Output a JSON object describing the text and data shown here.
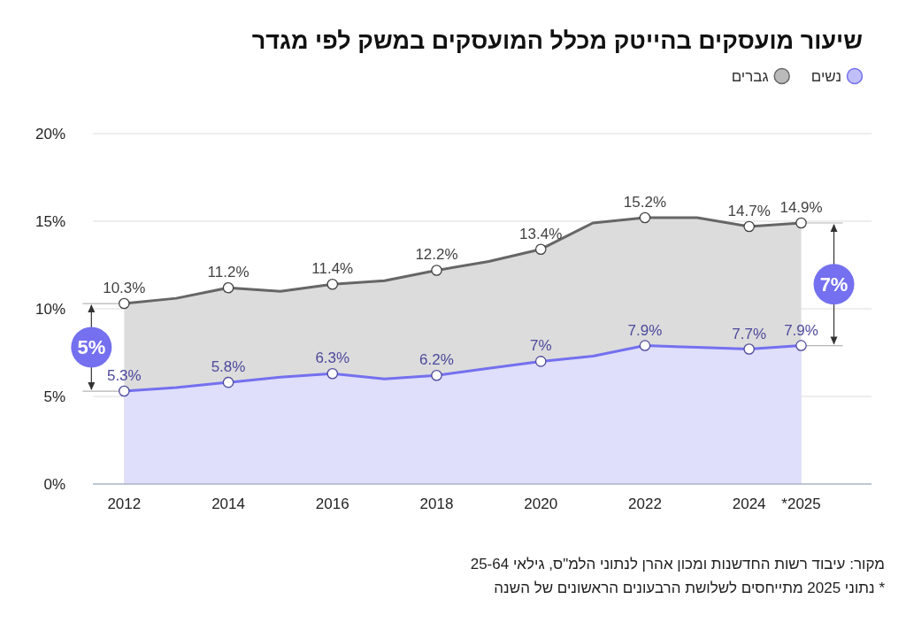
{
  "chart_data": {
    "type": "area",
    "title": "שיעור מועסקים בהייטק מכלל המועסקים במשק לפי מגדר",
    "x": [
      2012,
      2013,
      2014,
      2015,
      2016,
      2017,
      2018,
      2019,
      2020,
      2021,
      2022,
      2023,
      2024,
      2025
    ],
    "xlim": [
      2011.4,
      2026.35
    ],
    "xticks": [
      2012,
      2014,
      2016,
      2018,
      2020,
      2022,
      2024,
      {
        "value": 2025,
        "label": "*2025"
      }
    ],
    "ylim": [
      0,
      20
    ],
    "yticks": [
      {
        "value": 0,
        "label": "0%"
      },
      {
        "value": 5,
        "label": "5%"
      },
      {
        "value": 10,
        "label": "10%"
      },
      {
        "value": 15,
        "label": "15%"
      },
      {
        "value": 20,
        "label": "20%"
      }
    ],
    "grid": "y",
    "legend": "top right",
    "marker": "circle",
    "series": [
      {
        "name": "נשים",
        "color": "#7470ef",
        "values": [
          5.3,
          5.5,
          5.8,
          6.1,
          6.3,
          6.0,
          6.2,
          6.6,
          7.0,
          7.3,
          7.9,
          7.8,
          7.7,
          7.9
        ],
        "value_labels": [
          "5.3%",
          null,
          "5.8%",
          null,
          "6.3%",
          null,
          "6.2%",
          null,
          "7%",
          null,
          "7.9%",
          null,
          "7.7%",
          "7.9%"
        ]
      },
      {
        "name": "גברים",
        "color": "#666666",
        "values": [
          10.3,
          10.6,
          11.2,
          11.0,
          11.4,
          11.6,
          12.2,
          12.7,
          13.4,
          14.9,
          15.2,
          15.2,
          14.7,
          14.9
        ],
        "value_labels": [
          "10.3%",
          null,
          "11.2%",
          null,
          "11.4%",
          null,
          "12.2%",
          null,
          "13.4%",
          null,
          "15.2%",
          null,
          "14.7%",
          "14.9%"
        ]
      }
    ],
    "annotations": [
      {
        "text": "5%",
        "x": 2012,
        "y": 7.8
      },
      {
        "text": "7%",
        "x": 2025,
        "y": 11.4
      },
      "מקור: עיבוד רשות החדשנות ומכון אהרן לנתוני הלמ\"ס, גילאי 25-64",
      "* נתוני 2025 מתייחסים לשלושת הרבעונים הראשונים של השנה"
    ]
  }
}
